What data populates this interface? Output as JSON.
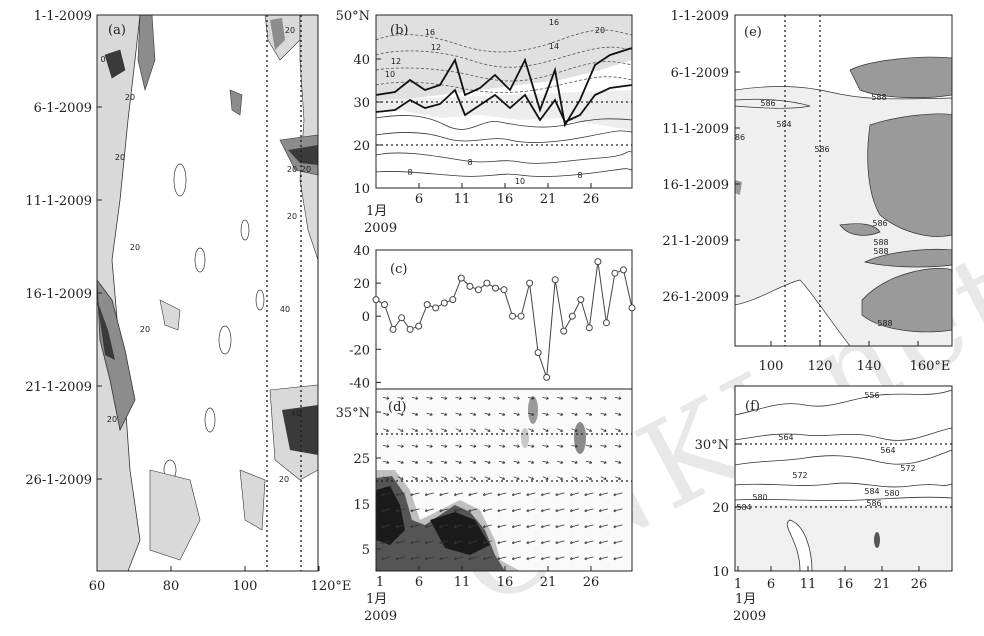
{
  "watermark": "CNKI.net",
  "chart_data": [
    {
      "id": "a",
      "type": "heatmap",
      "panel_label": "(a)",
      "x_ticks": [
        "60",
        "80",
        "100",
        "120°E"
      ],
      "y_ticks": [
        "1-1-2009",
        "6-1-2009",
        "11-1-2009",
        "16-1-2009",
        "21-1-2009",
        "26-1-2009"
      ],
      "contour_labels": [
        "20",
        "20",
        "20",
        "20",
        "20",
        "20",
        "20",
        "20",
        "40",
        "40",
        "20",
        "20",
        "0"
      ],
      "reference_lines_lon": [
        110,
        120
      ]
    },
    {
      "id": "b",
      "type": "line",
      "panel_label": "(b)",
      "y_ticks": [
        "10",
        "20",
        "30",
        "40",
        "50°N"
      ],
      "x_ticks": [
        "1月",
        "6",
        "11",
        "16",
        "21",
        "26"
      ],
      "x_year": "2009",
      "contour_labels": [
        "12",
        "10",
        "8",
        "8",
        "10",
        "8",
        "14",
        "16",
        "16",
        "12",
        "20"
      ],
      "reference_lines_lat": [
        20,
        30
      ]
    },
    {
      "id": "c",
      "type": "line",
      "panel_label": "(c)",
      "y_ticks": [
        "40",
        "20",
        "0",
        "-20",
        "-40"
      ],
      "ylim": [
        -44,
        40
      ],
      "x": [
        1,
        2,
        3,
        4,
        5,
        6,
        7,
        8,
        9,
        10,
        11,
        12,
        13,
        14,
        15,
        16,
        17,
        18,
        19,
        20,
        21,
        22,
        23,
        24,
        25,
        26,
        27,
        28,
        29,
        30,
        31
      ],
      "values": [
        10,
        7,
        -8,
        -1,
        -8,
        -6,
        7,
        5,
        8,
        10,
        23,
        18,
        16,
        20,
        17,
        16,
        0,
        0,
        20,
        -22,
        -37,
        22,
        -9,
        0,
        10,
        -7,
        33,
        -4,
        26,
        28,
        5
      ]
    },
    {
      "id": "d",
      "type": "heatmap",
      "panel_label": "(d)",
      "y_ticks": [
        "5",
        "15",
        "25",
        "35°N"
      ],
      "x_ticks": [
        "1",
        "6",
        "11",
        "16",
        "21",
        "26"
      ],
      "x_month": "1月",
      "x_year": "2009",
      "reference_lines_lat": [
        20,
        30
      ]
    },
    {
      "id": "e",
      "type": "heatmap",
      "panel_label": "(e)",
      "y_ticks": [
        "1-1-2009",
        "6-1-2009",
        "11-1-2009",
        "16-1-2009",
        "21-1-2009",
        "26-1-2009"
      ],
      "x_ticks": [
        "100",
        "120",
        "140",
        "160°E"
      ],
      "contour_labels": [
        "586",
        "588",
        "584",
        "86",
        "586",
        "588",
        "588",
        "586",
        "588"
      ],
      "reference_lines_lon": [
        110,
        120
      ]
    },
    {
      "id": "f",
      "type": "line",
      "panel_label": "(f)",
      "y_ticks": [
        "10",
        "20",
        "30°N"
      ],
      "x_ticks": [
        "1",
        "6",
        "11",
        "16",
        "21",
        "26"
      ],
      "x_month": "1月",
      "x_year": "2009",
      "contour_labels": [
        "556",
        "564",
        "564",
        "572",
        "572",
        "584",
        "580",
        "580",
        "584",
        "586"
      ],
      "reference_lines_lat": [
        20,
        30
      ]
    }
  ]
}
